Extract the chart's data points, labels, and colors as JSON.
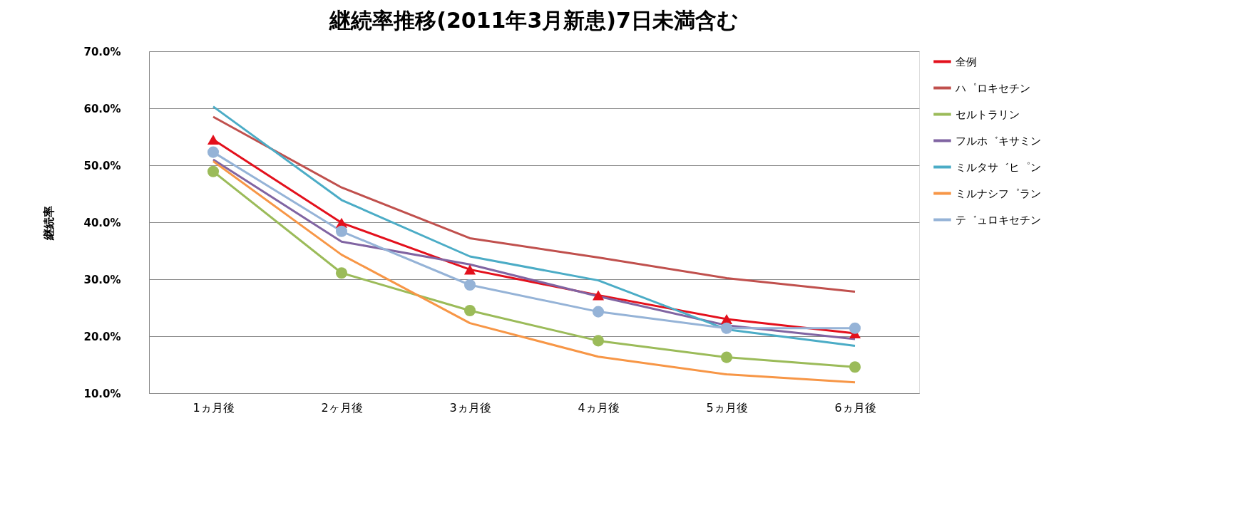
{
  "chart_data": {
    "type": "line",
    "title": "継続率推移(2011年3月新患)7日未満含む",
    "ylabel": "継続率",
    "categories": [
      "1ヵ月後",
      "2ヶ月後",
      "3ヵ月後",
      "4ヵ月後",
      "5ヵ月後",
      "6ヵ月後"
    ],
    "ylim": [
      10,
      70
    ],
    "yticks": [
      {
        "value": 10,
        "label": "10.0%"
      },
      {
        "value": 20,
        "label": "20.0%"
      },
      {
        "value": 30,
        "label": "30.0%"
      },
      {
        "value": 40,
        "label": "40.0%"
      },
      {
        "value": 50,
        "label": "50.0%"
      },
      {
        "value": 60,
        "label": "60.0%"
      },
      {
        "value": 70,
        "label": "70.0%"
      }
    ],
    "grid": "y",
    "legend": "right",
    "series": [
      {
        "name": "全例",
        "color": "#e3101c",
        "marker": "triangle",
        "values": [
          54.5,
          39.9,
          31.7,
          27.2,
          23.0,
          20.5
        ]
      },
      {
        "name": "ハ゜ロキセチン",
        "color": "#c0504d",
        "values": [
          58.5,
          46.1,
          37.2,
          33.8,
          30.2,
          27.8
        ]
      },
      {
        "name": "セルトラリン",
        "color": "#9bbb59",
        "marker": "circle",
        "values": [
          48.9,
          31.1,
          24.5,
          19.2,
          16.3,
          14.6
        ]
      },
      {
        "name": "フルホ゛キサミン",
        "color": "#8064a2",
        "values": [
          51.0,
          36.6,
          32.6,
          27.0,
          21.9,
          19.5
        ]
      },
      {
        "name": "ミルタサ゛ヒ゜ン",
        "color": "#4bacc6",
        "values": [
          60.3,
          43.9,
          34.0,
          29.8,
          21.2,
          18.3
        ]
      },
      {
        "name": "ミルナシフ゜ラン",
        "color": "#f79646",
        "values": [
          50.7,
          34.3,
          22.3,
          16.4,
          13.3,
          11.9
        ]
      },
      {
        "name": "テ゛ュロキセチン",
        "color": "#95b3d7",
        "marker": "circle",
        "values": [
          52.3,
          38.4,
          29.0,
          24.3,
          21.4,
          21.4
        ]
      }
    ]
  }
}
